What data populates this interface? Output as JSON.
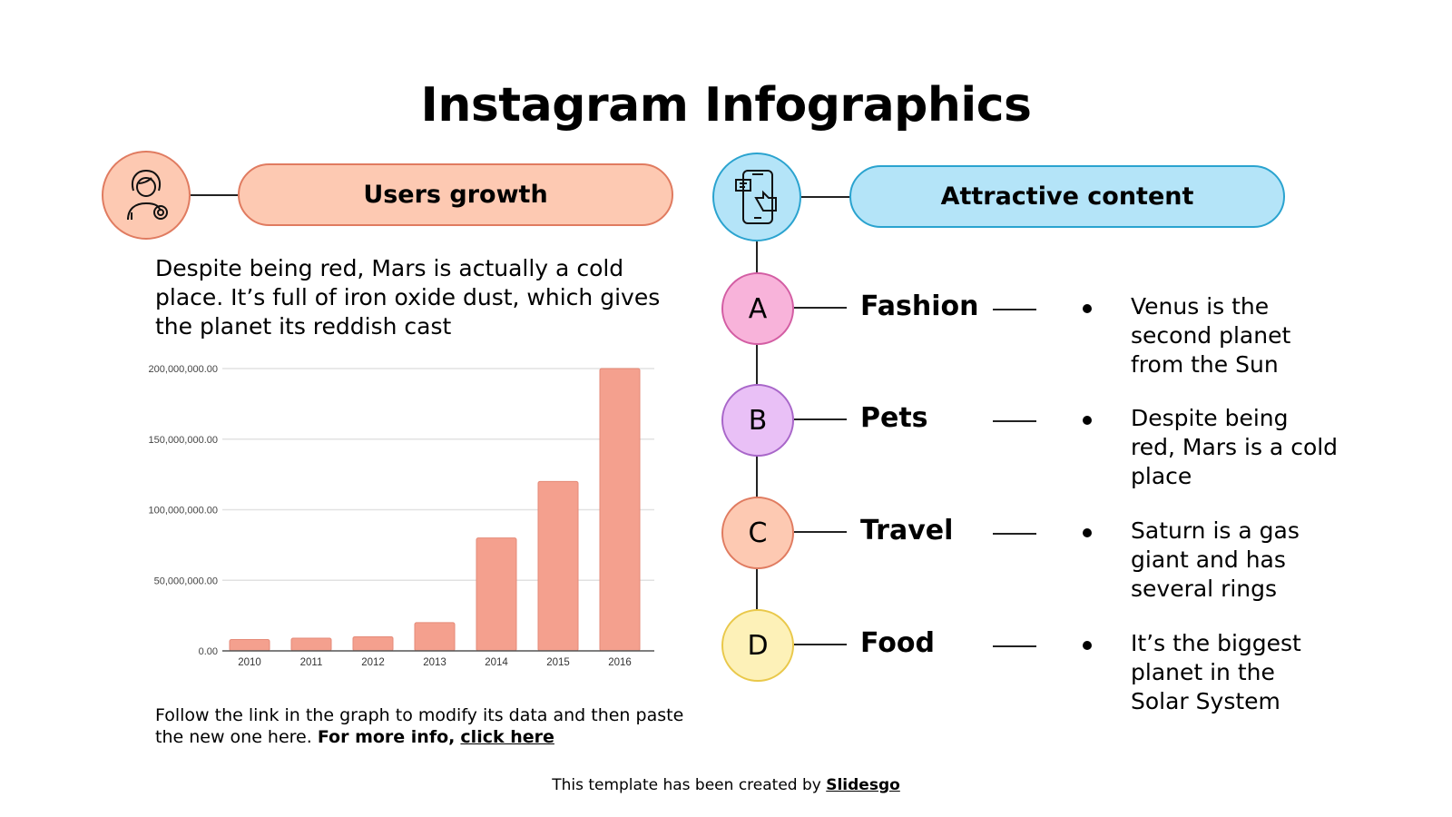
{
  "title": "Instagram Infographics",
  "left": {
    "header": "Users growth",
    "icon": "user-badge-icon",
    "description": "Despite being red, Mars is actually a cold place. It’s full of iron oxide dust, which gives the planet its reddish cast",
    "note_plain": "Follow the link in the graph to modify its data and then paste the new one here.",
    "note_bold": "For more info,",
    "note_link": "click here"
  },
  "right": {
    "header": "Attractive content",
    "icon": "phone-like-icon",
    "items": [
      {
        "letter": "A",
        "label": "Fashion",
        "text": "Venus is the second planet from the Sun",
        "color": "#f8b3da",
        "border": "#d35da3"
      },
      {
        "letter": "B",
        "label": "Pets",
        "text": "Despite being red, Mars is a cold place",
        "color": "#e9c0f6",
        "border": "#a866c9"
      },
      {
        "letter": "C",
        "label": "Travel",
        "text": "Saturn is a gas giant and has several rings",
        "color": "#fdc9b2",
        "border": "#e07b60"
      },
      {
        "letter": "D",
        "label": "Food",
        "text": "It’s the biggest planet in the Solar System",
        "color": "#fdf1b8",
        "border": "#e9c84a"
      }
    ]
  },
  "footer": {
    "text": "This template has been created by",
    "link": "Slidesgo"
  },
  "colors": {
    "peach": "#fdc9b2",
    "peach_border": "#e07b60",
    "blue": "#b4e4f8",
    "blue_border": "#2aa3cf",
    "bar": "#f4a08e"
  },
  "chart_data": {
    "type": "bar",
    "categories": [
      "2010",
      "2011",
      "2012",
      "2013",
      "2014",
      "2015",
      "2016"
    ],
    "values": [
      8000000,
      9000000,
      10000000,
      20000000,
      80000000,
      120000000,
      200000000
    ],
    "yticks": [
      "0.00",
      "50,000,000.00",
      "100,000,000.00",
      "150,000,000.00",
      "200,000,000.00"
    ],
    "ylim": [
      0,
      200000000
    ],
    "grid": true
  }
}
